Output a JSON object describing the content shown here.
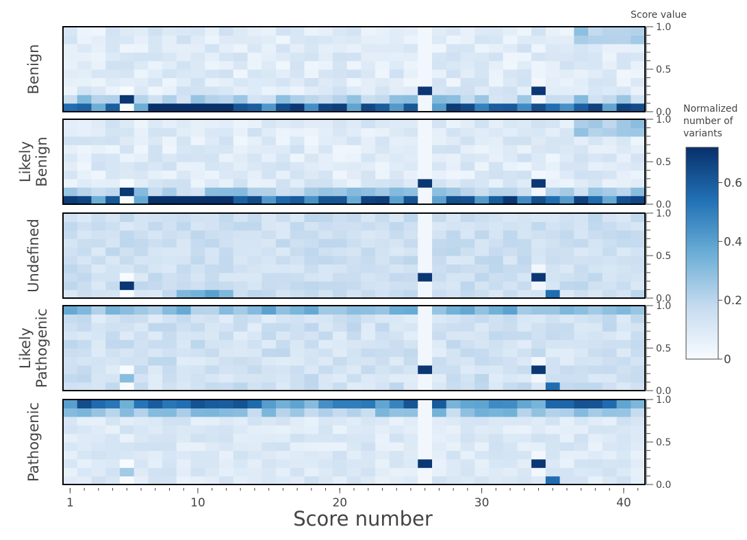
{
  "chart_data": {
    "type": "heatmap",
    "xlabel": "Score number",
    "x_ticks": [
      1,
      10,
      20,
      30,
      40
    ],
    "y_axis_title": "Score value",
    "y_ticks": [
      "0.0",
      "0.5",
      "1.0"
    ],
    "ylim": [
      0,
      1
    ],
    "xlim": [
      1,
      41
    ],
    "bins_per_panel": 10,
    "panels": [
      {
        "label_lines": [
          "Benign"
        ]
      },
      {
        "label_lines": [
          "Likely",
          "Benign"
        ]
      },
      {
        "label_lines": [
          "Undefined"
        ]
      },
      {
        "label_lines": [
          "Likely",
          "Pathogenic"
        ]
      },
      {
        "label_lines": [
          "Pathogenic"
        ]
      }
    ],
    "colorbar": {
      "title_lines": [
        "Normalized",
        "number of",
        "variants"
      ],
      "ticks": [
        "0",
        "0.2",
        "0.4",
        "0.6"
      ],
      "range": [
        0,
        0.72
      ]
    },
    "colorscale": [
      "#f7fbff",
      "#c6dbef",
      "#6baed6",
      "#2171b5",
      "#08306b"
    ]
  }
}
